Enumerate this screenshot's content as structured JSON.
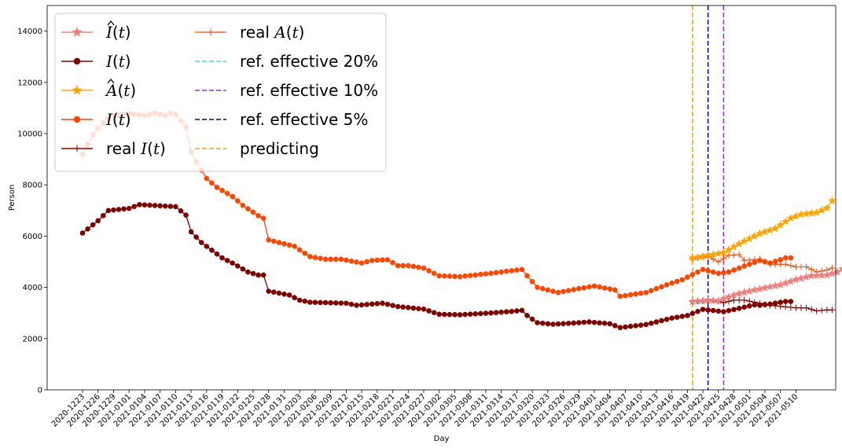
{
  "chart_data": {
    "type": "line",
    "title": "",
    "xlabel": "Day",
    "ylabel": "Person",
    "ylim": [
      0,
      15000
    ],
    "yticks": [
      0,
      2000,
      4000,
      6000,
      8000,
      10000,
      12000,
      14000
    ],
    "ytick_labels": [
      "0",
      "2000",
      "4000",
      "6000",
      "8000",
      "10000",
      "12000",
      "14000"
    ],
    "x_start": "2020-12-23",
    "x_end": "2021-05-11",
    "xtick_labels": [
      "2020-1223",
      "2020-1226",
      "2020-1229",
      "2021-0101",
      "2021-0104",
      "2021-0107",
      "2021-0110",
      "2021-0113",
      "2021-0116",
      "2021-0119",
      "2021-0122",
      "2021-0125",
      "2021-0128",
      "2021-0131",
      "2021-0203",
      "2021-0206",
      "2021-0209",
      "2021-0212",
      "2021-0215",
      "2021-0218",
      "2021-0221",
      "2021-0224",
      "2021-0227",
      "2021-0302",
      "2021-0305",
      "2021-0308",
      "2021-0311",
      "2021-0314",
      "2021-0317",
      "2021-0320",
      "2021-0323",
      "2021-0326",
      "2021-0329",
      "2021-0401",
      "2021-0404",
      "2021-0407",
      "2021-0410",
      "2021-0413",
      "2021-0416",
      "2021-0419",
      "2021-0422",
      "2021-0425",
      "2021-0428",
      "2021-0501",
      "2021-0504",
      "2021-0507",
      "2021-0510"
    ],
    "legend_location": "upper-left",
    "grid": false,
    "series": [
      {
        "name": "Î(t)",
        "legend_base": "I",
        "legend_hat": true,
        "color": "#f08080",
        "marker": "star",
        "line": "solid",
        "anchors": [
          [
            0,
            3450
          ],
          [
            3,
            3500
          ],
          [
            5,
            3480
          ],
          [
            8,
            3700
          ],
          [
            11,
            3850
          ],
          [
            14,
            3980
          ],
          [
            17,
            4100
          ],
          [
            20,
            4300
          ],
          [
            23,
            4450
          ],
          [
            26,
            4480
          ],
          [
            28,
            4600
          ],
          [
            29,
            4720
          ]
        ]
      },
      {
        "name": "I(t)",
        "legend_base": "I",
        "legend_hat": false,
        "color": "#800000",
        "marker": "circle",
        "line": "solid",
        "anchors": [
          [
            0,
            6120
          ],
          [
            3,
            6600
          ],
          [
            5,
            7000
          ],
          [
            9,
            7080
          ],
          [
            11,
            7230
          ],
          [
            18,
            7150
          ],
          [
            20,
            6820
          ],
          [
            21,
            6170
          ],
          [
            23,
            5750
          ],
          [
            27,
            5150
          ],
          [
            29,
            4950
          ],
          [
            32,
            4600
          ],
          [
            34,
            4480
          ],
          [
            35,
            4480
          ],
          [
            36,
            3850
          ],
          [
            40,
            3700
          ],
          [
            42,
            3500
          ],
          [
            44,
            3420
          ],
          [
            51,
            3380
          ],
          [
            53,
            3300
          ],
          [
            58,
            3380
          ],
          [
            61,
            3250
          ],
          [
            66,
            3150
          ],
          [
            69,
            2950
          ],
          [
            73,
            2930
          ],
          [
            79,
            3000
          ],
          [
            83,
            3060
          ],
          [
            85,
            3100
          ],
          [
            86,
            2900
          ],
          [
            88,
            2620
          ],
          [
            91,
            2560
          ],
          [
            96,
            2620
          ],
          [
            98,
            2650
          ],
          [
            102,
            2580
          ],
          [
            104,
            2430
          ],
          [
            109,
            2550
          ],
          [
            114,
            2800
          ],
          [
            117,
            2900
          ],
          [
            120,
            3140
          ],
          [
            124,
            3050
          ],
          [
            127,
            3180
          ],
          [
            130,
            3320
          ],
          [
            131,
            3300
          ],
          [
            133,
            3350
          ],
          [
            136,
            3450
          ],
          [
            137,
            3450
          ]
        ]
      },
      {
        "name": "Â(t)",
        "legend_base": "A",
        "legend_hat": true,
        "color": "#ffa500",
        "marker": "star",
        "line": "solid",
        "anchors": [
          [
            0,
            5150
          ],
          [
            4,
            5280
          ],
          [
            6,
            5350
          ],
          [
            9,
            5700
          ],
          [
            13,
            6100
          ],
          [
            16,
            6300
          ],
          [
            19,
            6700
          ],
          [
            21,
            6850
          ],
          [
            24,
            6920
          ],
          [
            26,
            7100
          ],
          [
            27,
            7380
          ]
        ]
      },
      {
        "name": "I(t)",
        "legend_base": "I",
        "legend_hat": false,
        "color": "#ff4500",
        "marker": "circle",
        "line": "solid",
        "anchors": [
          [
            0,
            9200
          ],
          [
            2,
            9950
          ],
          [
            3,
            10200
          ],
          [
            5,
            10600
          ],
          [
            6,
            10700
          ],
          [
            9,
            10780
          ],
          [
            12,
            10700
          ],
          [
            14,
            10800
          ],
          [
            16,
            10700
          ],
          [
            17,
            10800
          ],
          [
            18,
            10750
          ],
          [
            19,
            10500
          ],
          [
            20,
            10250
          ],
          [
            21,
            9300
          ],
          [
            22,
            8900
          ],
          [
            24,
            8250
          ],
          [
            26,
            7900
          ],
          [
            29,
            7550
          ],
          [
            31,
            7200
          ],
          [
            34,
            6800
          ],
          [
            35,
            6700
          ],
          [
            36,
            5850
          ],
          [
            39,
            5700
          ],
          [
            41,
            5600
          ],
          [
            44,
            5200
          ],
          [
            47,
            5100
          ],
          [
            50,
            5100
          ],
          [
            54,
            4950
          ],
          [
            56,
            5050
          ],
          [
            59,
            5080
          ],
          [
            61,
            4850
          ],
          [
            63,
            4850
          ],
          [
            66,
            4750
          ],
          [
            69,
            4450
          ],
          [
            73,
            4420
          ],
          [
            79,
            4550
          ],
          [
            83,
            4650
          ],
          [
            85,
            4700
          ],
          [
            86,
            4450
          ],
          [
            88,
            4000
          ],
          [
            92,
            3800
          ],
          [
            96,
            3950
          ],
          [
            99,
            4050
          ],
          [
            103,
            3900
          ],
          [
            104,
            3650
          ],
          [
            109,
            3800
          ],
          [
            113,
            4100
          ],
          [
            116,
            4300
          ],
          [
            120,
            4700
          ],
          [
            123,
            4550
          ],
          [
            125,
            4600
          ],
          [
            129,
            4900
          ],
          [
            131,
            5050
          ],
          [
            133,
            4950
          ],
          [
            136,
            5150
          ],
          [
            137,
            5150
          ]
        ]
      },
      {
        "name": "real I(t)",
        "legend_base": "I",
        "legend_hat": false,
        "legend_prefix": "real ",
        "color": "#8b0000",
        "marker": "plus",
        "line": "solid",
        "anchors": [
          [
            0,
            3450
          ],
          [
            3,
            3480
          ],
          [
            4,
            3500
          ],
          [
            6,
            3400
          ],
          [
            8,
            3500
          ],
          [
            10,
            3500
          ],
          [
            12,
            3420
          ],
          [
            15,
            3300
          ],
          [
            18,
            3240
          ],
          [
            20,
            3200
          ],
          [
            22,
            3200
          ],
          [
            24,
            3080
          ],
          [
            26,
            3120
          ],
          [
            27,
            3120
          ]
        ]
      },
      {
        "name": "real A(t)",
        "legend_base": "A",
        "legend_hat": false,
        "legend_prefix": "real ",
        "color": "#ff4500",
        "marker": "plus",
        "line": "solid",
        "thin": true,
        "anchors": [
          [
            0,
            5120
          ],
          [
            3,
            5200
          ],
          [
            5,
            5000
          ],
          [
            7,
            5250
          ],
          [
            9,
            5280
          ],
          [
            10,
            5050
          ],
          [
            13,
            5100
          ],
          [
            15,
            4900
          ],
          [
            18,
            4900
          ],
          [
            20,
            4800
          ],
          [
            22,
            4800
          ],
          [
            24,
            4600
          ],
          [
            26,
            4680
          ],
          [
            27,
            4750
          ]
        ]
      }
    ],
    "reference_lines": [
      {
        "name": "ref. effective 20%",
        "color": "#40e0d0",
        "day": "2021-04-26",
        "visible": false
      },
      {
        "name": "ref. effective 10%",
        "color": "#9932cc",
        "day": "2021-04-26",
        "visible": true
      },
      {
        "name": "ref. effective 5%",
        "color": "#000080",
        "day": "2021-04-23",
        "visible": true
      },
      {
        "name": "predicting",
        "color": "#daa520",
        "day": "2021-04-20",
        "visible": true
      }
    ]
  }
}
